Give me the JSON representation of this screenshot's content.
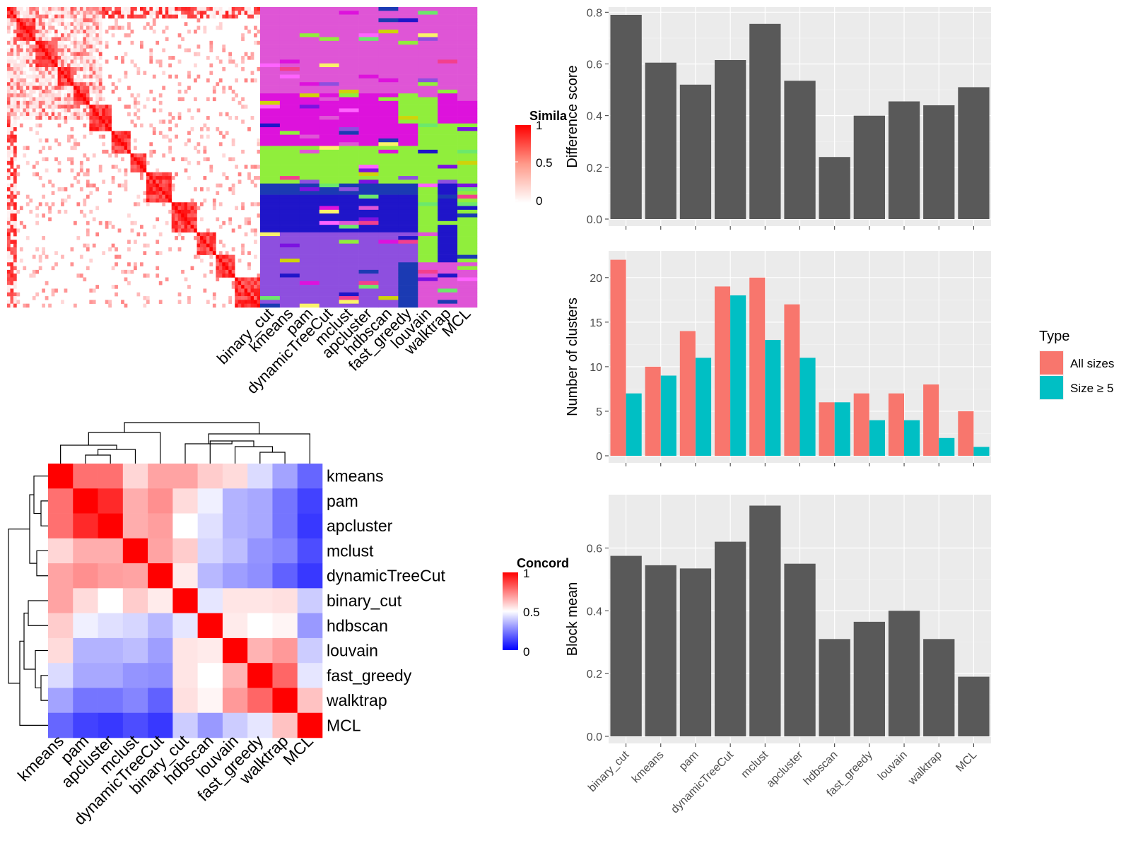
{
  "colors": {
    "panel_bg": "#ebebeb",
    "grid": "#ffffff",
    "bar_dark": "#595959",
    "all_sizes": "#f8766d",
    "size_ge5": "#00bfc4",
    "heat_high": "#ff0000",
    "heat_mid": "#ffffff",
    "heat_low": "#0000ff"
  },
  "similarity_heatmap": {
    "legend_title": "Simila",
    "legend_ticks": [
      "1",
      "0.5",
      "0"
    ],
    "methods": [
      "binary_cut",
      "kmeans",
      "pam",
      "dynamicTreeCut",
      "mclust",
      "apcluster",
      "hdbscan",
      "fast_greedy",
      "louvain",
      "walktrap",
      "MCL"
    ]
  },
  "concordance_heatmap": {
    "legend_title": "Concord",
    "legend_ticks": [
      "1",
      "0.5",
      "0"
    ],
    "row_labels": [
      "kmeans",
      "pam",
      "apcluster",
      "mclust",
      "dynamicTreeCut",
      "binary_cut",
      "hdbscan",
      "louvain",
      "fast_greedy",
      "walktrap",
      "MCL"
    ],
    "col_labels": [
      "kmeans",
      "pam",
      "apcluster",
      "mclust",
      "dynamicTreeCut",
      "binary_cut",
      "hdbscan",
      "louvain",
      "fast_greedy",
      "walktrap",
      "MCL"
    ]
  },
  "chart_data": [
    {
      "type": "bar",
      "categories": [
        "binary_cut",
        "kmeans",
        "pam",
        "dynamicTreeCut",
        "mclust",
        "apcluster",
        "hdbscan",
        "fast_greedy",
        "louvain",
        "walktrap",
        "MCL"
      ],
      "values": [
        0.79,
        0.605,
        0.52,
        0.615,
        0.755,
        0.535,
        0.24,
        0.4,
        0.455,
        0.44,
        0.51
      ],
      "title": "",
      "xlabel": "",
      "ylabel": "Difference score",
      "ylim": [
        0,
        0.82
      ],
      "yticks": [
        "0.0",
        "0.2",
        "0.4",
        "0.6",
        "0.8"
      ],
      "grid": true
    },
    {
      "type": "bar",
      "categories": [
        "binary_cut",
        "kmeans",
        "pam",
        "dynamicTreeCut",
        "mclust",
        "apcluster",
        "hdbscan",
        "fast_greedy",
        "louvain",
        "walktrap",
        "MCL"
      ],
      "series": [
        {
          "name": "All sizes",
          "values": [
            22,
            10,
            14,
            19,
            20,
            17,
            6,
            7,
            7,
            8,
            5
          ]
        },
        {
          "name": "Size ≥ 5",
          "values": [
            7,
            9,
            11,
            18,
            13,
            11,
            6,
            4,
            4,
            2,
            1
          ]
        }
      ],
      "title": "",
      "xlabel": "",
      "ylabel": "Number of clusters",
      "ylim": [
        0,
        23
      ],
      "yticks": [
        "0",
        "5",
        "10",
        "15",
        "20"
      ],
      "legend_title": "Type",
      "legend_position": "right",
      "grid": true
    },
    {
      "type": "bar",
      "categories": [
        "binary_cut",
        "kmeans",
        "pam",
        "dynamicTreeCut",
        "mclust",
        "apcluster",
        "hdbscan",
        "fast_greedy",
        "louvain",
        "walktrap",
        "MCL"
      ],
      "values": [
        0.575,
        0.545,
        0.535,
        0.62,
        0.735,
        0.55,
        0.31,
        0.365,
        0.4,
        0.31,
        0.19
      ],
      "title": "",
      "xlabel": "",
      "ylabel": "Block mean",
      "ylim": [
        0,
        0.77
      ],
      "yticks": [
        "0.0",
        "0.2",
        "0.4",
        "0.6"
      ],
      "grid": true
    }
  ]
}
